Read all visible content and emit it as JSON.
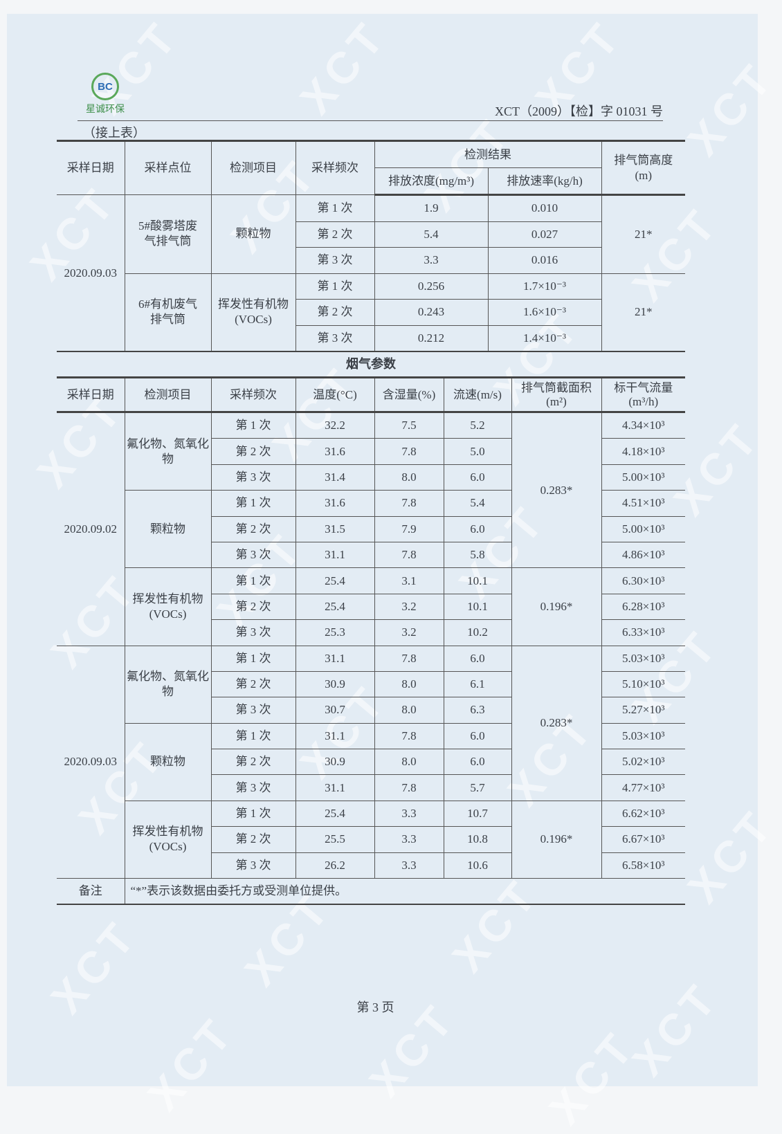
{
  "header": {
    "logo_text": "星诚环保",
    "logo_mark": "BC",
    "doc_number": "XCT（2009）【检】字 01031 号",
    "continued": "（接上表）"
  },
  "emissions_table": {
    "headers": {
      "date": "采样日期",
      "point": "采样点位",
      "item": "检测项目",
      "freq": "采样频次",
      "results": "检测结果",
      "concentration": "排放浓度(mg/m³)",
      "rate": "排放速率(kg/h)",
      "height": "排气筒高度(m)"
    },
    "date": "2020.09.03",
    "groups": [
      {
        "point": "5#酸雾塔废气排气筒",
        "item": "颗粒物",
        "height": "21*",
        "rows": [
          {
            "freq": "第 1 次",
            "concentration": "1.9",
            "rate": "0.010"
          },
          {
            "freq": "第 2 次",
            "concentration": "5.4",
            "rate": "0.027"
          },
          {
            "freq": "第 3 次",
            "concentration": "3.3",
            "rate": "0.016"
          }
        ]
      },
      {
        "point": "6#有机废气排气筒",
        "item": "挥发性有机物(VOCs)",
        "height": "21*",
        "rows": [
          {
            "freq": "第 1 次",
            "concentration": "0.256",
            "rate": "1.7×10⁻³"
          },
          {
            "freq": "第 2 次",
            "concentration": "0.243",
            "rate": "1.6×10⁻³"
          },
          {
            "freq": "第 3 次",
            "concentration": "0.212",
            "rate": "1.4×10⁻³"
          }
        ]
      }
    ]
  },
  "section_title": "烟气参数",
  "flue_table": {
    "headers": {
      "date": "采样日期",
      "item": "检测项目",
      "freq": "采样频次",
      "temp": "温度(°C)",
      "humidity": "含湿量(%)",
      "velocity": "流速(m/s)",
      "area": "排气筒截面积(m²)",
      "flow": "标干气流量(m³/h)"
    },
    "dates": [
      {
        "date": "2020.09.02",
        "area_groups": [
          {
            "area": "0.283*",
            "items": [
              {
                "item": "氟化物、氮氧化物",
                "rows": [
                  {
                    "freq": "第 1 次",
                    "temp": "32.2",
                    "humidity": "7.5",
                    "velocity": "5.2",
                    "flow": "4.34×10³"
                  },
                  {
                    "freq": "第 2 次",
                    "temp": "31.6",
                    "humidity": "7.8",
                    "velocity": "5.0",
                    "flow": "4.18×10³"
                  },
                  {
                    "freq": "第 3 次",
                    "temp": "31.4",
                    "humidity": "8.0",
                    "velocity": "6.0",
                    "flow": "5.00×10³"
                  }
                ]
              },
              {
                "item": "颗粒物",
                "rows": [
                  {
                    "freq": "第 1 次",
                    "temp": "31.6",
                    "humidity": "7.8",
                    "velocity": "5.4",
                    "flow": "4.51×10³"
                  },
                  {
                    "freq": "第 2 次",
                    "temp": "31.5",
                    "humidity": "7.9",
                    "velocity": "6.0",
                    "flow": "5.00×10³"
                  },
                  {
                    "freq": "第 3 次",
                    "temp": "31.1",
                    "humidity": "7.8",
                    "velocity": "5.8",
                    "flow": "4.86×10³"
                  }
                ]
              }
            ]
          },
          {
            "area": "0.196*",
            "items": [
              {
                "item": "挥发性有机物(VOCs)",
                "rows": [
                  {
                    "freq": "第 1 次",
                    "temp": "25.4",
                    "humidity": "3.1",
                    "velocity": "10.1",
                    "flow": "6.30×10³"
                  },
                  {
                    "freq": "第 2 次",
                    "temp": "25.4",
                    "humidity": "3.2",
                    "velocity": "10.1",
                    "flow": "6.28×10³"
                  },
                  {
                    "freq": "第 3 次",
                    "temp": "25.3",
                    "humidity": "3.2",
                    "velocity": "10.2",
                    "flow": "6.33×10³"
                  }
                ]
              }
            ]
          }
        ]
      },
      {
        "date": "2020.09.03",
        "area_groups": [
          {
            "area": "0.283*",
            "items": [
              {
                "item": "氟化物、氮氧化物",
                "rows": [
                  {
                    "freq": "第 1 次",
                    "temp": "31.1",
                    "humidity": "7.8",
                    "velocity": "6.0",
                    "flow": "5.03×10³"
                  },
                  {
                    "freq": "第 2 次",
                    "temp": "30.9",
                    "humidity": "8.0",
                    "velocity": "6.1",
                    "flow": "5.10×10³"
                  },
                  {
                    "freq": "第 3 次",
                    "temp": "30.7",
                    "humidity": "8.0",
                    "velocity": "6.3",
                    "flow": "5.27×10³"
                  }
                ]
              },
              {
                "item": "颗粒物",
                "rows": [
                  {
                    "freq": "第 1 次",
                    "temp": "31.1",
                    "humidity": "7.8",
                    "velocity": "6.0",
                    "flow": "5.03×10³"
                  },
                  {
                    "freq": "第 2 次",
                    "temp": "30.9",
                    "humidity": "8.0",
                    "velocity": "6.0",
                    "flow": "5.02×10³"
                  },
                  {
                    "freq": "第 3 次",
                    "temp": "31.1",
                    "humidity": "7.8",
                    "velocity": "5.7",
                    "flow": "4.77×10³"
                  }
                ]
              }
            ]
          },
          {
            "area": "0.196*",
            "items": [
              {
                "item": "挥发性有机物(VOCs)",
                "rows": [
                  {
                    "freq": "第 1 次",
                    "temp": "25.4",
                    "humidity": "3.3",
                    "velocity": "10.7",
                    "flow": "6.62×10³"
                  },
                  {
                    "freq": "第 2 次",
                    "temp": "25.5",
                    "humidity": "3.3",
                    "velocity": "10.8",
                    "flow": "6.67×10³"
                  },
                  {
                    "freq": "第 3 次",
                    "temp": "26.2",
                    "humidity": "3.3",
                    "velocity": "10.6",
                    "flow": "6.58×10³"
                  }
                ]
              }
            ]
          }
        ]
      }
    ],
    "note_label": "备注",
    "note_text": "“*”表示该数据由委托方或受测单位提供。"
  },
  "footer": {
    "page": "第 3 页"
  },
  "watermark": "XCT"
}
